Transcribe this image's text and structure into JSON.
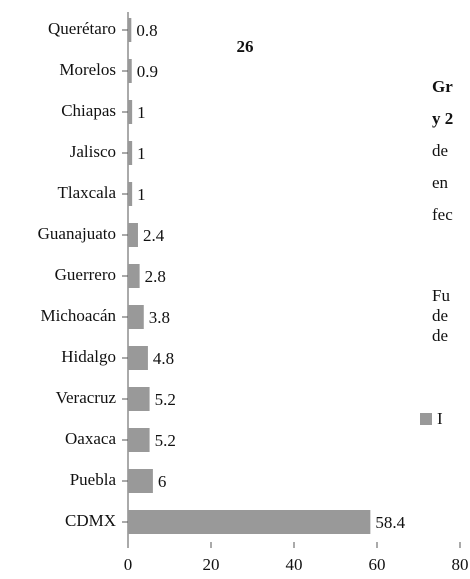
{
  "chart_data": {
    "type": "bar",
    "orientation": "horizontal",
    "annotation": "26",
    "categories": [
      "Querétaro",
      "Morelos",
      "Chiapas",
      "Jalisco",
      "Tlaxcala",
      "Guanajuato",
      "Guerrero",
      "Michoacán",
      "Hidalgo",
      "Veracruz",
      "Oaxaca",
      "Puebla",
      "CDMX"
    ],
    "values": [
      0.8,
      0.9,
      1,
      1,
      1,
      2.4,
      2.8,
      3.8,
      4.8,
      5.2,
      5.2,
      6,
      58.4
    ],
    "color": "#999999",
    "xlim": [
      0,
      80
    ],
    "xticks": [
      0,
      20,
      40,
      60,
      80
    ],
    "side_title": [
      "Gr",
      "y 2"
    ],
    "side_text": [
      "de",
      "en",
      "fec"
    ],
    "side_source": [
      "Fu",
      "de",
      "de"
    ],
    "legend_label": "I"
  }
}
